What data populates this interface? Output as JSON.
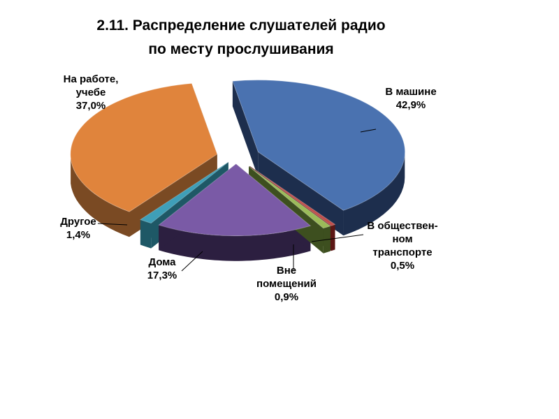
{
  "chart_data": {
    "type": "pie",
    "title_lines": [
      "2.11. Распределение слушателей радио",
      "по месту прослушивания"
    ],
    "legend": "none",
    "slices": [
      {
        "label_lines": [
          "В машине"
        ],
        "value_label": "42,9%",
        "value": 42.9,
        "color": "#4a72b0",
        "side_color": "#1d2e4d"
      },
      {
        "label_lines": [
          "В обществен-",
          "ном",
          "транспорте"
        ],
        "value_label": "0,5%",
        "value": 0.5,
        "color": "#c0504d",
        "side_color": "#5c1715"
      },
      {
        "label_lines": [
          "Вне",
          "помещений"
        ],
        "value_label": "0,9%",
        "value": 0.9,
        "color": "#9bbb59",
        "side_color": "#3d4f1f"
      },
      {
        "label_lines": [
          "Дома"
        ],
        "value_label": "17,3%",
        "value": 17.3,
        "color": "#7a5aa6",
        "side_color": "#2c1f40"
      },
      {
        "label_lines": [
          "Другое"
        ],
        "value_label": "1,4%",
        "value": 1.4,
        "color": "#3f9fb8",
        "side_color": "#1e5866"
      },
      {
        "label_lines": [
          "На работе,",
          "учебе"
        ],
        "value_label": "37,0%",
        "value": 37.0,
        "color": "#e0843c",
        "side_color": "#7a4a23"
      }
    ]
  }
}
